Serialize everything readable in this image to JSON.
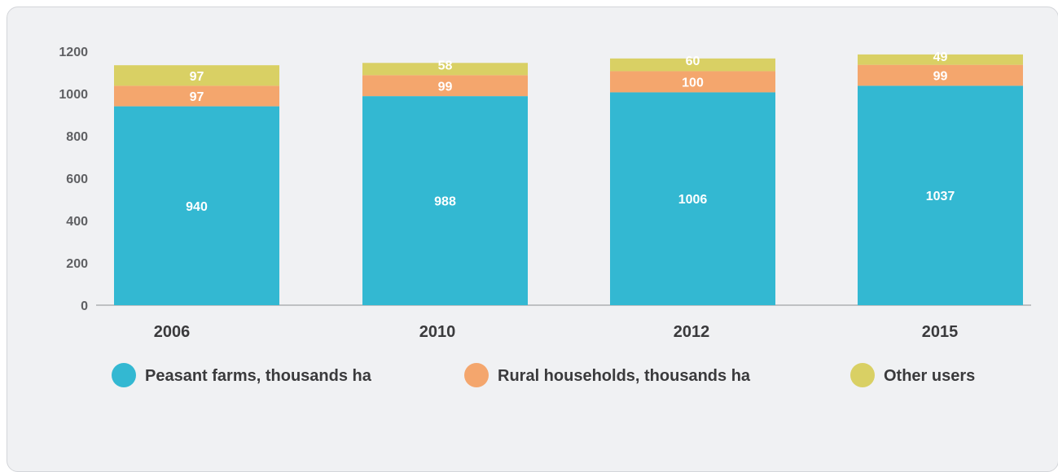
{
  "chart_data": {
    "type": "bar",
    "stacked": true,
    "categories": [
      "2006",
      "2010",
      "2012",
      "2015"
    ],
    "series": [
      {
        "name": "Peasant farms, thousands ha",
        "values": [
          940,
          988,
          1006,
          1037
        ],
        "color": "#33b8d2"
      },
      {
        "name": "Rural households, thousands ha",
        "values": [
          97,
          99,
          100,
          99
        ],
        "color": "#f4a66d"
      },
      {
        "name": "Other users",
        "values": [
          97,
          58,
          60,
          49
        ],
        "color": "#d9d064"
      }
    ],
    "data_labels": [
      [
        "940",
        "988",
        "1006",
        "1037"
      ],
      [
        "97",
        "99",
        "100",
        "99"
      ],
      [
        "97",
        "58",
        "60",
        "49"
      ]
    ],
    "y_ticks": [
      "0",
      "200",
      "400",
      "600",
      "800",
      "1000",
      "1200"
    ],
    "ylim": [
      0,
      1200
    ],
    "grid": false,
    "legend_position": "bottom"
  }
}
